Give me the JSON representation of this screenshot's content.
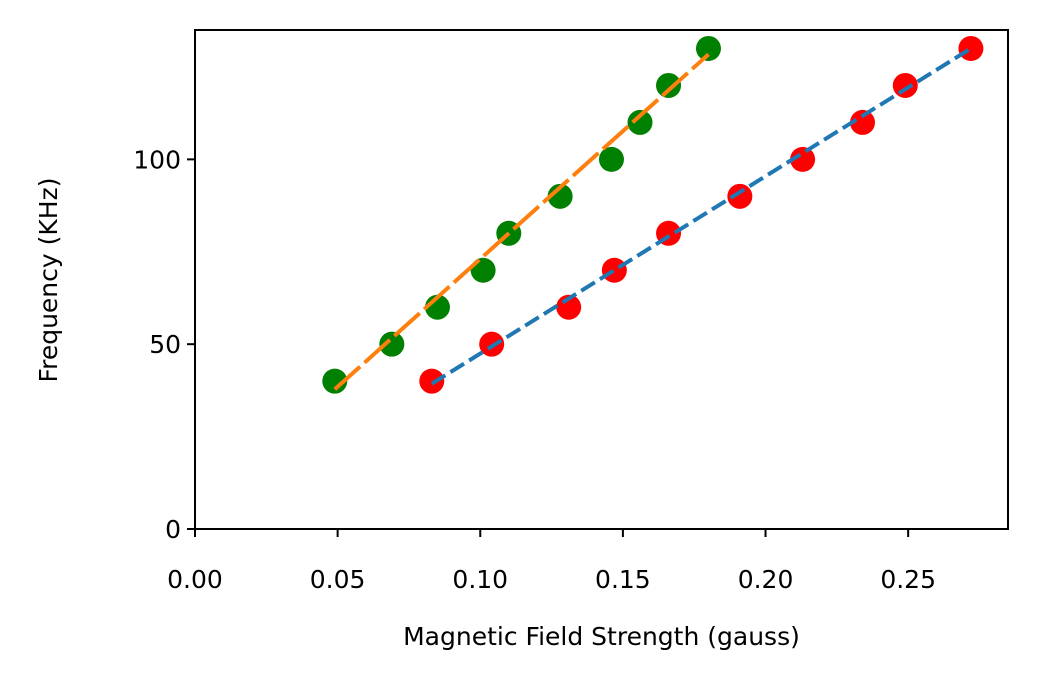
{
  "chart_data": {
    "type": "scatter",
    "title": "",
    "xlabel": "Magnetic Field Strength (gauss)",
    "ylabel": "Frequency (KHz)",
    "xlim": [
      0.0,
      0.285
    ],
    "ylim": [
      0,
      135
    ],
    "xticks": [
      0.0,
      0.05,
      0.1,
      0.15,
      0.2,
      0.25
    ],
    "xtick_labels": [
      "0.00",
      "0.05",
      "0.10",
      "0.15",
      "0.20",
      "0.25"
    ],
    "yticks": [
      0,
      50,
      100
    ],
    "ytick_labels": [
      "0",
      "50",
      "100"
    ],
    "grid": false,
    "legend": "none",
    "series": [
      {
        "kind": "points",
        "color": "#008000",
        "x": [
          0.049,
          0.069,
          0.085,
          0.101,
          0.11,
          0.128,
          0.146,
          0.156,
          0.166,
          0.18
        ],
        "y": [
          40,
          50,
          60,
          70,
          80,
          90,
          100,
          110,
          120,
          130
        ]
      },
      {
        "kind": "points",
        "color": "#ff0000",
        "x": [
          0.083,
          0.104,
          0.131,
          0.147,
          0.166,
          0.191,
          0.213,
          0.234,
          0.249,
          0.272
        ],
        "y": [
          40,
          50,
          60,
          70,
          80,
          90,
          100,
          110,
          120,
          130
        ]
      },
      {
        "kind": "line",
        "color": "#ff7f0e",
        "style": "dash-long",
        "x": [
          0.049,
          0.18
        ],
        "y": [
          37.8,
          128.4
        ]
      },
      {
        "kind": "line",
        "color": "#1f77b4",
        "style": "dash-short",
        "x": [
          0.083,
          0.272
        ],
        "y": [
          39.3,
          130.0
        ]
      }
    ]
  }
}
